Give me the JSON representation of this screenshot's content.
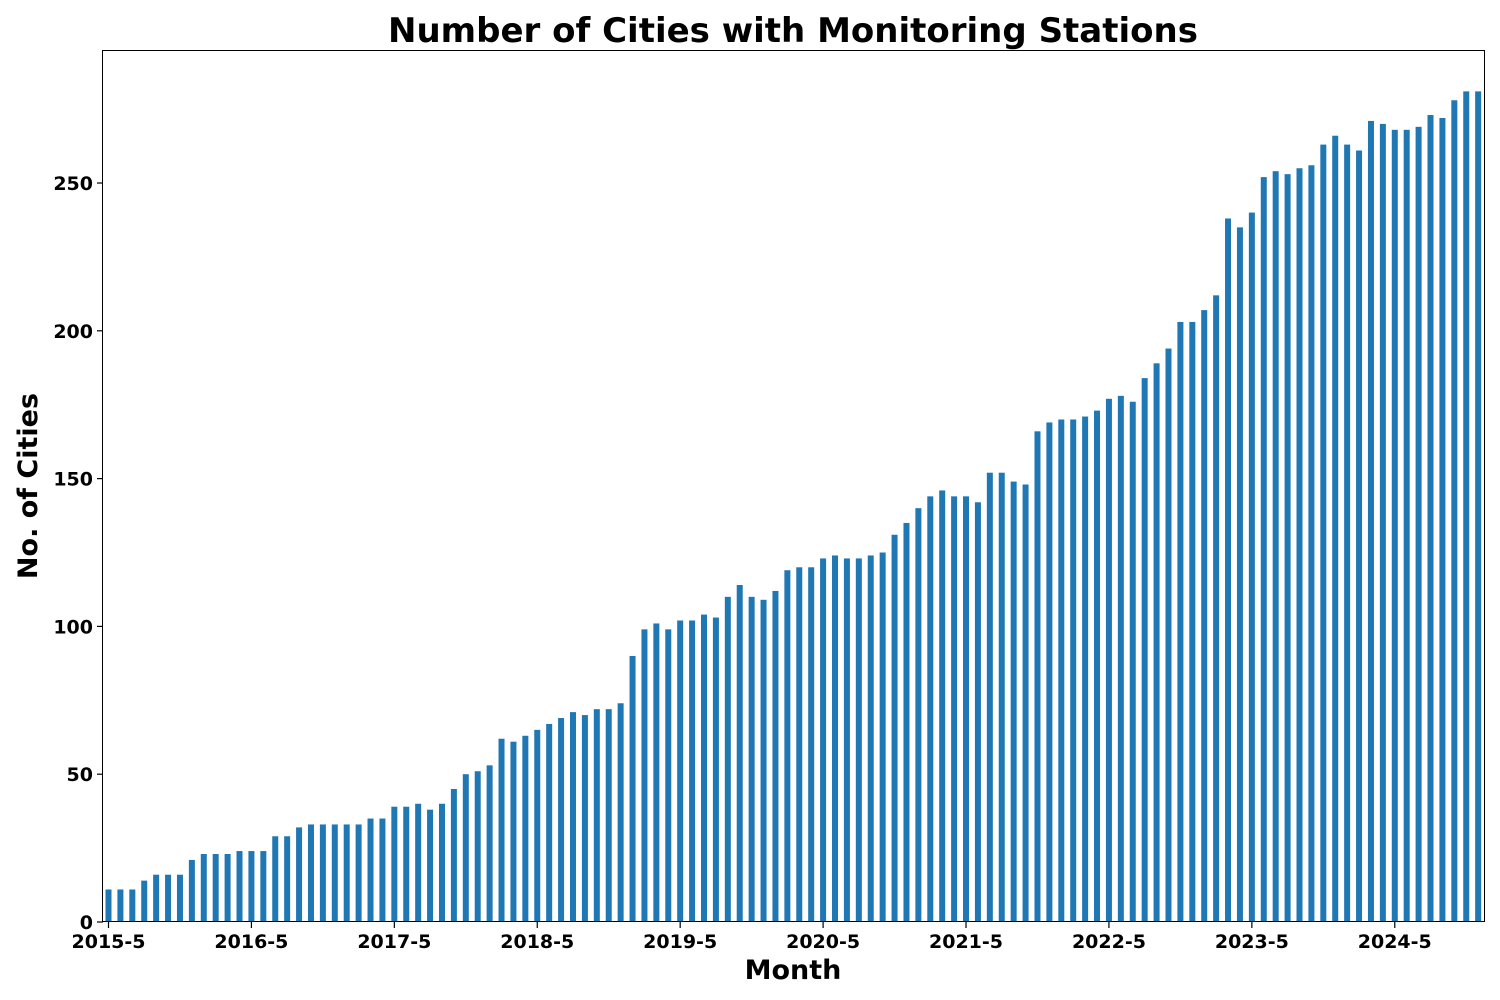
{
  "chart_data": {
    "type": "bar",
    "title": "Number of Cities with Monitoring Stations",
    "xlabel": "Month",
    "ylabel": "No. of Cities",
    "ylim": [
      0,
      295
    ],
    "yticks": [
      0,
      50,
      100,
      150,
      200,
      250
    ],
    "grid": false,
    "legend": "none",
    "bar_color": "#1f77b4",
    "categories": [
      "2015-5",
      "2015-6",
      "2015-7",
      "2015-8",
      "2015-9",
      "2015-10",
      "2015-11",
      "2015-12",
      "2016-1",
      "2016-2",
      "2016-3",
      "2016-4",
      "2016-5",
      "2016-6",
      "2016-7",
      "2016-8",
      "2016-9",
      "2016-10",
      "2016-11",
      "2016-12",
      "2017-1",
      "2017-2",
      "2017-3",
      "2017-4",
      "2017-5",
      "2017-6",
      "2017-7",
      "2017-8",
      "2017-9",
      "2017-10",
      "2017-11",
      "2017-12",
      "2018-1",
      "2018-2",
      "2018-3",
      "2018-4",
      "2018-5",
      "2018-6",
      "2018-7",
      "2018-8",
      "2018-9",
      "2018-10",
      "2018-11",
      "2018-12",
      "2019-1",
      "2019-2",
      "2019-3",
      "2019-4",
      "2019-5",
      "2019-6",
      "2019-7",
      "2019-8",
      "2019-9",
      "2019-10",
      "2019-11",
      "2019-12",
      "2020-1",
      "2020-2",
      "2020-3",
      "2020-4",
      "2020-5",
      "2020-6",
      "2020-7",
      "2020-8",
      "2020-9",
      "2020-10",
      "2020-11",
      "2020-12",
      "2021-1",
      "2021-2",
      "2021-3",
      "2021-4",
      "2021-5",
      "2021-6",
      "2021-7",
      "2021-8",
      "2021-9",
      "2021-10",
      "2021-11",
      "2021-12",
      "2022-1",
      "2022-2",
      "2022-3",
      "2022-4",
      "2022-5",
      "2022-6",
      "2022-7",
      "2022-8",
      "2022-9",
      "2022-10",
      "2022-11",
      "2022-12",
      "2023-1",
      "2023-2",
      "2023-3",
      "2023-4",
      "2023-5",
      "2023-6",
      "2023-7",
      "2023-8",
      "2023-9",
      "2023-10",
      "2023-11",
      "2023-12",
      "2024-1",
      "2024-2",
      "2024-3",
      "2024-4",
      "2024-5",
      "2024-6",
      "2024-7",
      "2024-8",
      "2024-9",
      "2024-10",
      "2024-11",
      "2024-12"
    ],
    "xtick_labels": [
      "2015-5",
      "2016-5",
      "2017-5",
      "2018-5",
      "2019-5",
      "2020-5",
      "2021-5",
      "2022-5",
      "2023-5",
      "2024-5"
    ],
    "values": [
      11,
      11,
      11,
      14,
      16,
      16,
      16,
      21,
      23,
      23,
      23,
      24,
      24,
      24,
      29,
      29,
      32,
      33,
      33,
      33,
      33,
      33,
      35,
      35,
      39,
      39,
      40,
      38,
      40,
      45,
      50,
      51,
      53,
      62,
      61,
      63,
      65,
      67,
      69,
      71,
      70,
      72,
      72,
      74,
      90,
      99,
      101,
      99,
      102,
      102,
      104,
      103,
      110,
      114,
      110,
      109,
      112,
      119,
      120,
      120,
      123,
      124,
      123,
      123,
      124,
      125,
      131,
      135,
      140,
      144,
      146,
      144,
      144,
      142,
      152,
      152,
      149,
      148,
      166,
      169,
      170,
      170,
      171,
      173,
      177,
      178,
      176,
      184,
      189,
      194,
      203,
      203,
      207,
      212,
      238,
      235,
      240,
      252,
      254,
      253,
      255,
      256,
      263,
      266,
      263,
      261,
      271,
      270,
      268,
      268,
      269,
      273,
      272,
      278,
      281,
      281
    ]
  }
}
